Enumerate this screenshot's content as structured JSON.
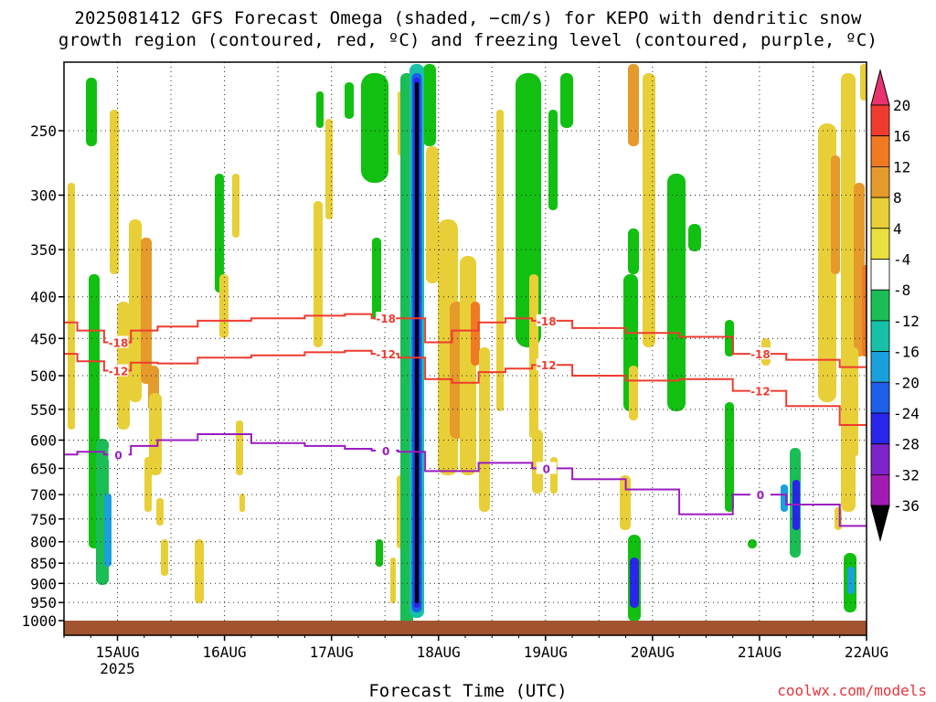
{
  "title_line1": "2025081412 GFS Forecast Omega (shaded, −cm/s) for KEPO with dendritic snow",
  "title_line2": "growth region (contoured, red, ºC) and freezing level (contoured, purple, ºC)",
  "xlabel": "Forecast Time (UTC)",
  "credit": "coolwx.com/models",
  "chart_data": {
    "type": "heatmap",
    "title": "2025081412 GFS Forecast Omega (shaded, −cm/s) for KEPO with dendritic snow growth region (contoured, red, ºC) and freezing level (contoured, purple, ºC)",
    "xlabel": "Forecast Time (UTC)",
    "ylabel": "",
    "x_ticks": [
      "15AUG",
      "16AUG",
      "17AUG",
      "18AUG",
      "19AUG",
      "20AUG",
      "21AUG",
      "22AUG"
    ],
    "x_year_label": "2025",
    "xlim": [
      "2025-08-14T12",
      "2025-08-22T00"
    ],
    "y_ticks": [
      250,
      300,
      350,
      400,
      450,
      500,
      550,
      600,
      650,
      700,
      750,
      800,
      850,
      900,
      950,
      1000
    ],
    "ylim": [
      1000,
      200
    ],
    "y_scale": "log-pressure",
    "grid": "dotted",
    "colorbar": {
      "levels": [
        20,
        16,
        12,
        8,
        4,
        -4,
        -8,
        -12,
        -16,
        -20,
        -24,
        -28,
        -32,
        -36
      ],
      "colors": [
        "#e8336e",
        "#ef3b30",
        "#ef7a22",
        "#e59a2c",
        "#e8cf37",
        "#e9e140",
        "#ffffff",
        "#11c011",
        "#1bbd55",
        "#16c1a8",
        "#1aa0dc",
        "#1f5ee9",
        "#2a25ea",
        "#7d23c7",
        "#a21cb4",
        "#9a9a9a",
        "#000000"
      ]
    },
    "contours": [
      {
        "name": "-18",
        "color": "#ef3b30",
        "value": -18,
        "x": [
          "2025-08-14T12",
          "2025-08-14T18",
          "2025-08-15T00",
          "2025-08-15T06",
          "2025-08-15T12",
          "2025-08-16T00",
          "2025-08-16T12",
          "2025-08-17T00",
          "2025-08-17T06",
          "2025-08-17T12",
          "2025-08-17T18",
          "2025-08-18T00",
          "2025-08-18T06",
          "2025-08-18T12",
          "2025-08-18T18",
          "2025-08-19T00",
          "2025-08-19T12",
          "2025-08-20T00",
          "2025-08-20T12",
          "2025-08-21T00",
          "2025-08-21T12",
          "2025-08-22T00"
        ],
        "y": [
          430,
          440,
          455,
          440,
          435,
          428,
          425,
          422,
          420,
          425,
          425,
          455,
          440,
          430,
          425,
          428,
          437,
          443,
          448,
          470,
          478,
          488
        ]
      },
      {
        "name": "-12",
        "color": "#ef3b30",
        "value": -12,
        "x": [
          "2025-08-14T12",
          "2025-08-14T18",
          "2025-08-15T00",
          "2025-08-15T06",
          "2025-08-15T12",
          "2025-08-16T00",
          "2025-08-16T12",
          "2025-08-17T00",
          "2025-08-17T06",
          "2025-08-17T12",
          "2025-08-17T18",
          "2025-08-18T00",
          "2025-08-18T06",
          "2025-08-18T12",
          "2025-08-18T18",
          "2025-08-19T00",
          "2025-08-19T12",
          "2025-08-20T00",
          "2025-08-20T12",
          "2025-08-21T00",
          "2025-08-21T12",
          "2025-08-22T00"
        ],
        "y": [
          470,
          480,
          493,
          482,
          483,
          475,
          472,
          468,
          466,
          470,
          475,
          505,
          510,
          495,
          490,
          485,
          500,
          507,
          505,
          522,
          545,
          575
        ]
      },
      {
        "name": "0",
        "color": "#9a1bc0",
        "value": 0,
        "x": [
          "2025-08-14T12",
          "2025-08-14T18",
          "2025-08-15T00",
          "2025-08-15T06",
          "2025-08-15T12",
          "2025-08-16T00",
          "2025-08-16T12",
          "2025-08-17T00",
          "2025-08-17T06",
          "2025-08-17T12",
          "2025-08-17T18",
          "2025-08-18T00",
          "2025-08-18T06",
          "2025-08-18T12",
          "2025-08-18T18",
          "2025-08-19T00",
          "2025-08-19T12",
          "2025-08-20T00",
          "2025-08-20T12",
          "2025-08-21T00",
          "2025-08-21T12",
          "2025-08-22T00"
        ],
        "y": [
          625,
          620,
          625,
          610,
          600,
          590,
          605,
          610,
          615,
          618,
          620,
          655,
          655,
          640,
          640,
          650,
          670,
          690,
          740,
          700,
          720,
          765
        ]
      }
    ]
  },
  "palette": {
    "ground": "#a2532f",
    "grid": "#222222"
  }
}
